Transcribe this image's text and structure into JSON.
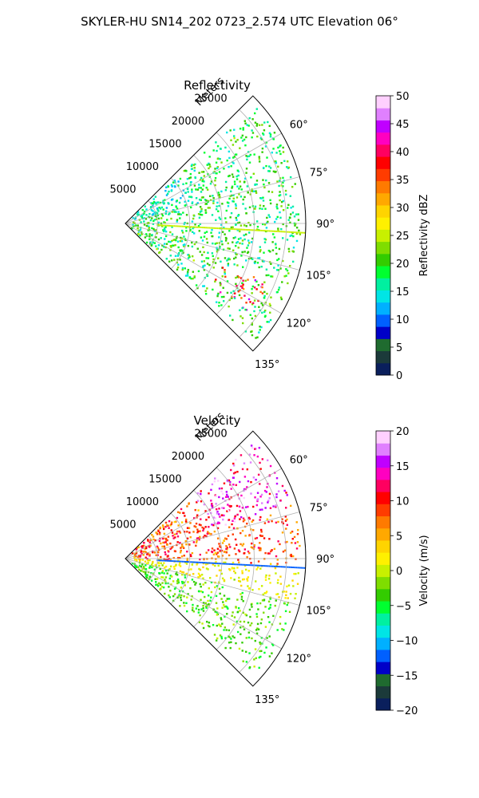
{
  "figure": {
    "suptitle": "SKYLER-HU  SN14_202  0723_2.574 UTC Elevation 06°"
  },
  "chart_data": [
    {
      "type": "polar-sector",
      "title": "Reflectivity",
      "range_label": "Meters",
      "range_ticks": [
        "5000",
        "10000",
        "15000",
        "20000",
        "25000"
      ],
      "range_tick_values": [
        5000,
        10000,
        15000,
        20000,
        25000
      ],
      "rmax": 28000,
      "azimuth_ticks": [
        "60°",
        "75°",
        "90°",
        "105°",
        "120°",
        "135°"
      ],
      "azimuth_tick_values": [
        60,
        75,
        90,
        105,
        120,
        135
      ],
      "azimuth_range": [
        45,
        135
      ],
      "grid": true,
      "colorbar": {
        "label": "Reflectivity dBZ",
        "ticks": [
          "0",
          "5",
          "10",
          "15",
          "20",
          "25",
          "30",
          "35",
          "40",
          "45",
          "50"
        ],
        "range": [
          0,
          50
        ],
        "colors": [
          "#0a1f5c",
          "#1b3a3a",
          "#1f6b2f",
          "#0000c8",
          "#0060ff",
          "#00b0ff",
          "#00e5e5",
          "#00f0a0",
          "#00ff30",
          "#33cc00",
          "#7fdd00",
          "#c8f000",
          "#fff000",
          "#ffd400",
          "#ffa800",
          "#ff7a00",
          "#ff3c00",
          "#ff0000",
          "#ff0060",
          "#ff00c0",
          "#c000ff",
          "#e080ff",
          "#ffd0ff"
        ]
      },
      "features": [
        {
          "name": "strong core",
          "az_start": 112,
          "az_end": 126,
          "r_start": 16000,
          "r_end": 24000,
          "value": 40
        },
        {
          "name": "spoke line",
          "az": 93,
          "r_start": 5000,
          "r_end": 28000,
          "value": 25
        }
      ]
    },
    {
      "type": "polar-sector",
      "title": "Velocity",
      "range_label": "Meters",
      "range_ticks": [
        "5000",
        "10000",
        "15000",
        "20000",
        "25000"
      ],
      "range_tick_values": [
        5000,
        10000,
        15000,
        20000,
        25000
      ],
      "rmax": 28000,
      "azimuth_ticks": [
        "60°",
        "75°",
        "90°",
        "105°",
        "120°",
        "135°"
      ],
      "azimuth_tick_values": [
        60,
        75,
        90,
        105,
        120,
        135
      ],
      "azimuth_range": [
        45,
        135
      ],
      "grid": true,
      "colorbar": {
        "label": "Velocity (m/s)",
        "ticks": [
          "−20",
          "−15",
          "−10",
          "−5",
          "0",
          "5",
          "10",
          "15",
          "20"
        ],
        "range": [
          -20,
          20
        ],
        "colors": [
          "#0a1f5c",
          "#1b3a3a",
          "#1f6b2f",
          "#0000c8",
          "#0060ff",
          "#00b0ff",
          "#00e5e5",
          "#00f0a0",
          "#00ff30",
          "#33cc00",
          "#7fdd00",
          "#c8f000",
          "#fff000",
          "#ffd400",
          "#ffa800",
          "#ff7a00",
          "#ff3c00",
          "#ff0000",
          "#ff0060",
          "#ff00c0",
          "#c000ff",
          "#e080ff",
          "#ffd0ff"
        ]
      },
      "features": [
        {
          "name": "receding region",
          "az_start": 55,
          "az_end": 95,
          "value": 10
        },
        {
          "name": "approaching region",
          "az_start": 105,
          "az_end": 135,
          "value": -3
        },
        {
          "name": "spoke line",
          "az": 93,
          "r_start": 5000,
          "r_end": 28000,
          "value": -12
        }
      ]
    }
  ]
}
